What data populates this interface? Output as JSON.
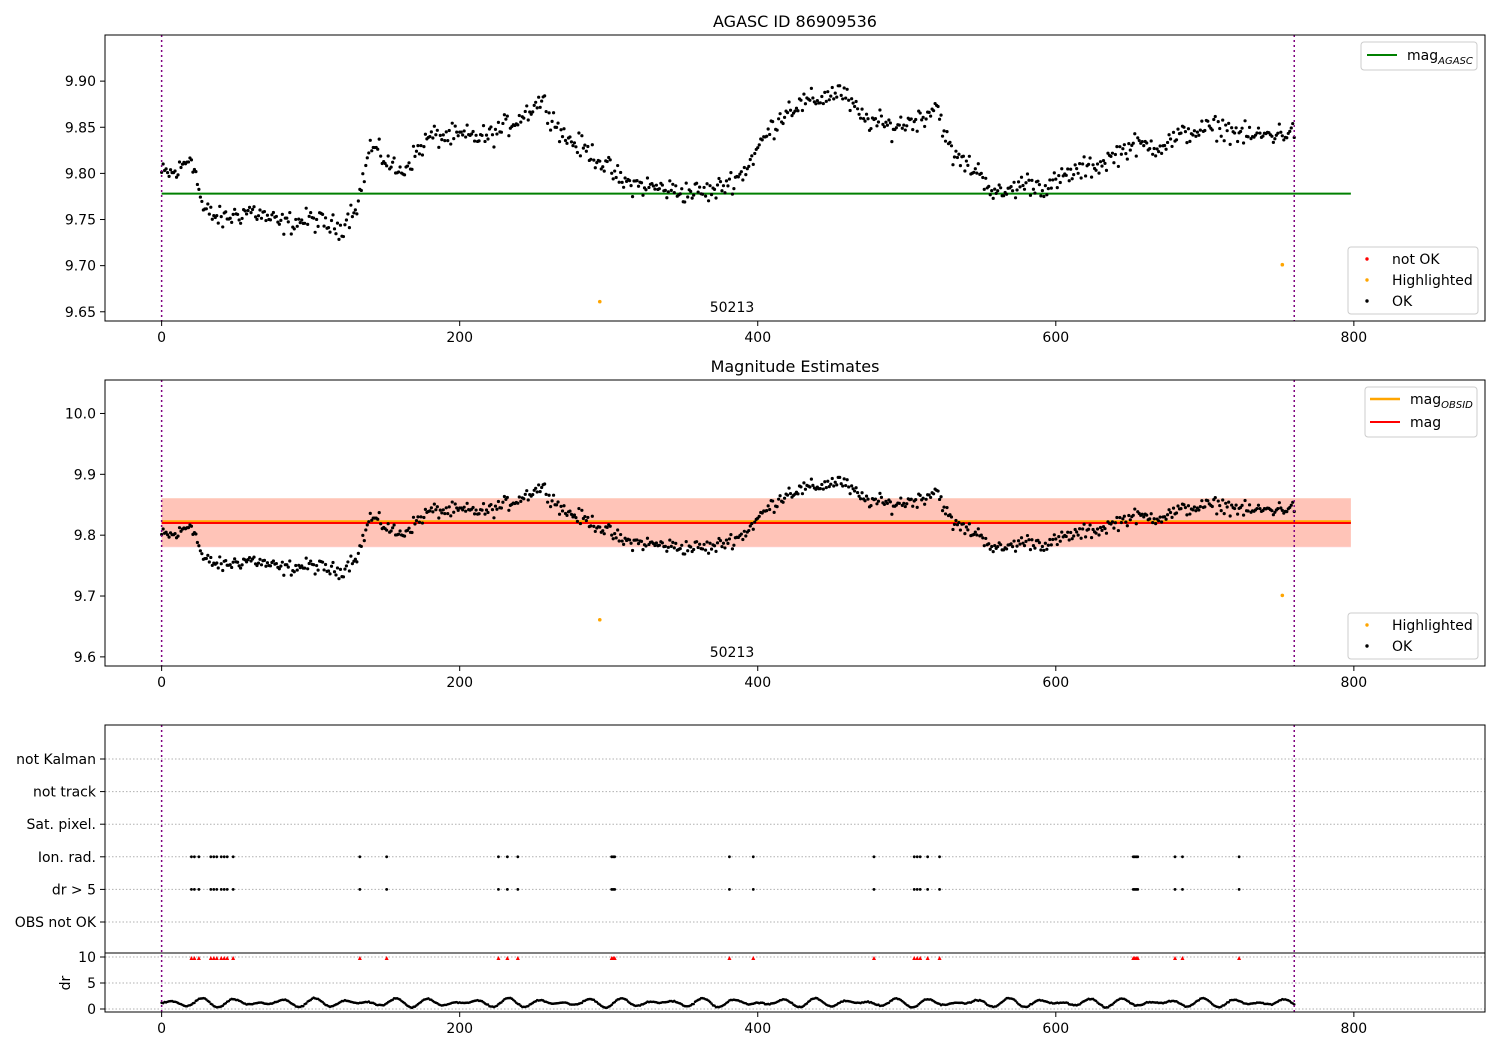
{
  "chart_data": [
    {
      "type": "scatter",
      "title": "AGASC ID 86909536",
      "xlim": [
        -38,
        888
      ],
      "ylim": [
        9.64,
        9.95
      ],
      "xticks": [
        0,
        200,
        400,
        600,
        800
      ],
      "yticks": [
        9.65,
        9.7,
        9.75,
        9.8,
        9.85,
        9.9
      ],
      "ytick_labels": [
        "9.65",
        "9.70",
        "9.75",
        "9.80",
        "9.85",
        "9.90"
      ],
      "obsid_boundaries": [
        0,
        760
      ],
      "obsid_label": "50213",
      "mag_agasc": 9.778,
      "mag_line_x": [
        0,
        798
      ],
      "highlighted_points": [
        {
          "x": 294,
          "y": 9.661
        },
        {
          "x": 752,
          "y": 9.701
        }
      ],
      "series_shape": [
        {
          "x": 0,
          "y": 9.8
        },
        {
          "x": 10,
          "y": 9.8
        },
        {
          "x": 20,
          "y": 9.82
        },
        {
          "x": 28,
          "y": 9.76
        },
        {
          "x": 40,
          "y": 9.75
        },
        {
          "x": 60,
          "y": 9.76
        },
        {
          "x": 80,
          "y": 9.745
        },
        {
          "x": 100,
          "y": 9.75
        },
        {
          "x": 120,
          "y": 9.74
        },
        {
          "x": 132,
          "y": 9.77
        },
        {
          "x": 140,
          "y": 9.83
        },
        {
          "x": 160,
          "y": 9.8
        },
        {
          "x": 180,
          "y": 9.84
        },
        {
          "x": 200,
          "y": 9.84
        },
        {
          "x": 220,
          "y": 9.84
        },
        {
          "x": 240,
          "y": 9.86
        },
        {
          "x": 255,
          "y": 9.88
        },
        {
          "x": 270,
          "y": 9.84
        },
        {
          "x": 290,
          "y": 9.82
        },
        {
          "x": 310,
          "y": 9.79
        },
        {
          "x": 330,
          "y": 9.785
        },
        {
          "x": 350,
          "y": 9.78
        },
        {
          "x": 370,
          "y": 9.78
        },
        {
          "x": 390,
          "y": 9.8
        },
        {
          "x": 405,
          "y": 9.84
        },
        {
          "x": 420,
          "y": 9.87
        },
        {
          "x": 440,
          "y": 9.88
        },
        {
          "x": 455,
          "y": 9.89
        },
        {
          "x": 470,
          "y": 9.86
        },
        {
          "x": 490,
          "y": 9.85
        },
        {
          "x": 510,
          "y": 9.86
        },
        {
          "x": 520,
          "y": 9.875
        },
        {
          "x": 530,
          "y": 9.82
        },
        {
          "x": 550,
          "y": 9.8
        },
        {
          "x": 560,
          "y": 9.775
        },
        {
          "x": 580,
          "y": 9.79
        },
        {
          "x": 595,
          "y": 9.785
        },
        {
          "x": 610,
          "y": 9.8
        },
        {
          "x": 630,
          "y": 9.81
        },
        {
          "x": 650,
          "y": 9.83
        },
        {
          "x": 670,
          "y": 9.83
        },
        {
          "x": 690,
          "y": 9.845
        },
        {
          "x": 710,
          "y": 9.85
        },
        {
          "x": 730,
          "y": 9.84
        },
        {
          "x": 760,
          "y": 9.845
        }
      ],
      "legend_lines": [
        "mag"
      ],
      "legend_lines_subscript": [
        "AGASC"
      ],
      "legend_points": [
        "not OK",
        "Highlighted",
        "OK"
      ],
      "colors": {
        "ok": "#000000",
        "not_ok": "#ff0000",
        "highlighted": "#ffa500",
        "mag_agasc": "#008000",
        "boundary": "#800080"
      }
    },
    {
      "type": "scatter",
      "title": "Magnitude Estimates",
      "xlim": [
        -38,
        888
      ],
      "ylim": [
        9.585,
        10.055
      ],
      "xticks": [
        0,
        200,
        400,
        600,
        800
      ],
      "yticks": [
        9.6,
        9.7,
        9.8,
        9.9,
        10.0
      ],
      "ytick_labels": [
        "9.6",
        "9.7",
        "9.8",
        "9.9",
        "10.0"
      ],
      "obsid_label": "50213",
      "mag": 9.82,
      "mag_obsid": 9.822,
      "mag_band": [
        9.78,
        9.86
      ],
      "mag_obsid_band": [
        9.781,
        9.861
      ],
      "legend_lines": [
        "mag",
        "mag"
      ],
      "legend_lines_subscript": [
        "OBSID",
        ""
      ],
      "legend_points": [
        "Highlighted",
        "OK"
      ],
      "colors": {
        "mag": "#ff0000",
        "mag_obsid": "#ffa500",
        "band_mag": "#ffc0cb",
        "band_obsid": "#ffa07a"
      }
    },
    {
      "type": "scatter",
      "title": "",
      "xlim": [
        -38,
        888
      ],
      "xticks": [
        0,
        200,
        400,
        600,
        800
      ],
      "flag_rows": [
        "not Kalman",
        "not track",
        "Sat. pixel.",
        "Ion. rad.",
        "dr > 5",
        "OBS not OK"
      ],
      "flagged_x": [
        20,
        22,
        25,
        33,
        35,
        37,
        40,
        42,
        44,
        48,
        133,
        151,
        226,
        232,
        239,
        302,
        303,
        304,
        381,
        397,
        478,
        505,
        507,
        509,
        514,
        522,
        652,
        653,
        654,
        655,
        680,
        685,
        723
      ],
      "flags_true": [
        "Ion. rad.",
        "dr > 5"
      ],
      "dr_ylabel": "dr",
      "dr_ylim": [
        -0.5,
        10.5
      ],
      "dr_yticks": [
        0,
        5,
        10
      ],
      "dr_threshold": 10,
      "dr_typical_range": [
        0.2,
        2.3
      ]
    }
  ]
}
